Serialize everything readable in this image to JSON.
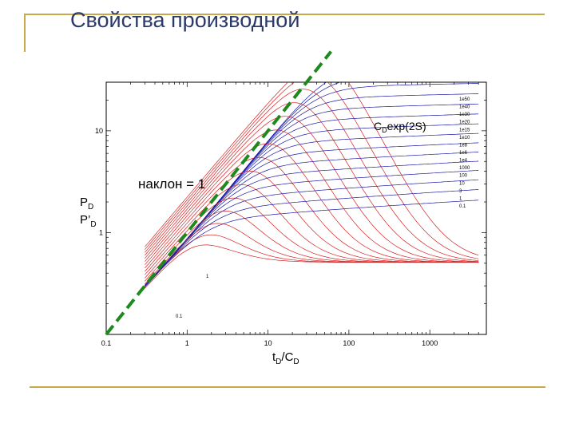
{
  "title": "Свойства производной",
  "chart_data": {
    "type": "line",
    "x_scale": "log",
    "y_scale": "log",
    "xlim": [
      0.1,
      5000
    ],
    "ylim": [
      0.1,
      30
    ],
    "x_ticks": [
      "0.1",
      "1",
      "10",
      "100",
      "1000"
    ],
    "y_ticks": [
      "10",
      "1"
    ],
    "xlabel": {
      "main": "t",
      "sub": "D",
      "slash": "/C",
      "sub2": "D"
    },
    "ylabel": {
      "line1": "P",
      "line1_sub": "D",
      "line2": "P’",
      "line2_sub": "D"
    },
    "annotations": {
      "slope": "наклон = 1",
      "param": {
        "main": "C",
        "sub": "D",
        "rest": "exp(2S)"
      }
    },
    "curve_labels": [
      "1e50",
      "1e40",
      "1e30",
      "1e20",
      "1e15",
      "1e10",
      "1e8",
      "1e6",
      "1e4",
      "1000",
      "100",
      "10",
      "3",
      "1",
      "0.1"
    ],
    "derivative_labels": [
      "1",
      "0.1"
    ],
    "t_start": 0.3,
    "t_end": 4000,
    "derivative_plateau": 0.5,
    "slope_line": {
      "x": [
        0.1,
        60
      ],
      "y": [
        0.1,
        60
      ]
    },
    "pressure_family_color": "#1a1aa8",
    "derivative_family_color": "#d82020",
    "slope_line_color": "#1e8a1e"
  }
}
